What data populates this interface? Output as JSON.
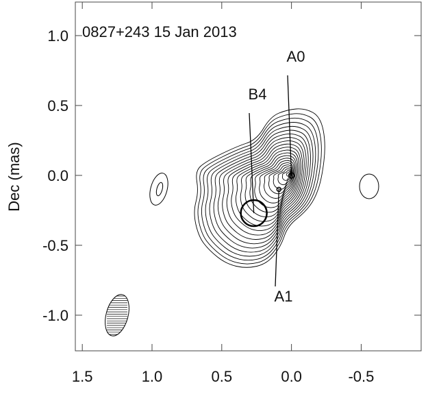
{
  "chart_data": {
    "type": "contour",
    "annotation": "0827+243  15 Jan 2013",
    "ylabel": "Dec (mas)",
    "xlim": [
      1.55,
      -0.93
    ],
    "ylim": [
      -1.255,
      1.24
    ],
    "xticks": [
      1.5,
      {
        "value": 1.0,
        "label": "1.0"
      },
      0.5,
      {
        "value": 0.0,
        "label": "0.0"
      },
      -0.5
    ],
    "yticks": [
      {
        "value": 1.0,
        "label": "1.0"
      },
      0.5,
      {
        "value": 0.0,
        "label": "0.0"
      },
      -0.5,
      {
        "value": -1.0,
        "label": "-1.0"
      }
    ],
    "components": [
      {
        "name": "A0",
        "x": 0.0,
        "y": 0.0
      },
      {
        "name": "B4",
        "x": 0.27,
        "y": -0.27
      },
      {
        "name": "A1",
        "x": 0.09,
        "y": -0.1
      }
    ],
    "color": "#000000"
  }
}
